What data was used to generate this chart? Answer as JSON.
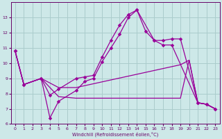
{
  "xlabel": "Windchill (Refroidissement éolien,°C)",
  "bg_color": "#cde8e8",
  "grid_color": "#aacccc",
  "line_color": "#990099",
  "xlim": [
    -0.5,
    23.5
  ],
  "ylim": [
    6,
    14
  ],
  "yticks": [
    6,
    7,
    8,
    9,
    10,
    11,
    12,
    13
  ],
  "xticks": [
    0,
    1,
    2,
    3,
    4,
    5,
    6,
    7,
    8,
    9,
    10,
    11,
    12,
    13,
    14,
    15,
    16,
    17,
    18,
    19,
    20,
    21,
    22,
    23
  ],
  "line1_x": [
    0,
    1,
    3,
    4,
    5,
    7,
    8,
    9,
    10,
    11,
    12,
    13,
    14,
    16,
    17,
    18,
    19,
    21,
    22,
    23
  ],
  "line1_y": [
    10.8,
    8.6,
    9.0,
    7.9,
    8.3,
    9.0,
    9.1,
    9.2,
    10.4,
    11.5,
    12.5,
    13.2,
    13.5,
    11.5,
    11.5,
    11.6,
    11.6,
    7.4,
    7.3,
    7.0
  ],
  "line2_x": [
    0,
    1,
    3,
    4,
    5,
    7,
    8,
    9,
    10,
    11,
    12,
    13,
    14,
    15,
    16,
    17,
    18,
    21,
    22,
    23
  ],
  "line2_y": [
    10.8,
    8.6,
    9.0,
    6.4,
    7.5,
    8.2,
    8.8,
    9.0,
    10.1,
    11.0,
    11.9,
    13.0,
    13.5,
    12.1,
    11.5,
    11.2,
    11.2,
    7.4,
    7.3,
    7.0
  ],
  "line3_x": [
    0,
    1,
    3,
    5,
    7,
    19,
    20,
    21,
    22,
    23
  ],
  "line3_y": [
    10.8,
    8.6,
    9.0,
    7.8,
    7.7,
    7.7,
    10.2,
    7.4,
    7.3,
    7.0
  ],
  "line4_x": [
    0,
    1,
    3,
    5,
    7,
    19,
    20,
    21,
    22,
    23
  ],
  "line4_y": [
    10.8,
    8.6,
    9.0,
    8.4,
    8.4,
    9.9,
    10.2,
    7.4,
    7.3,
    7.0
  ]
}
